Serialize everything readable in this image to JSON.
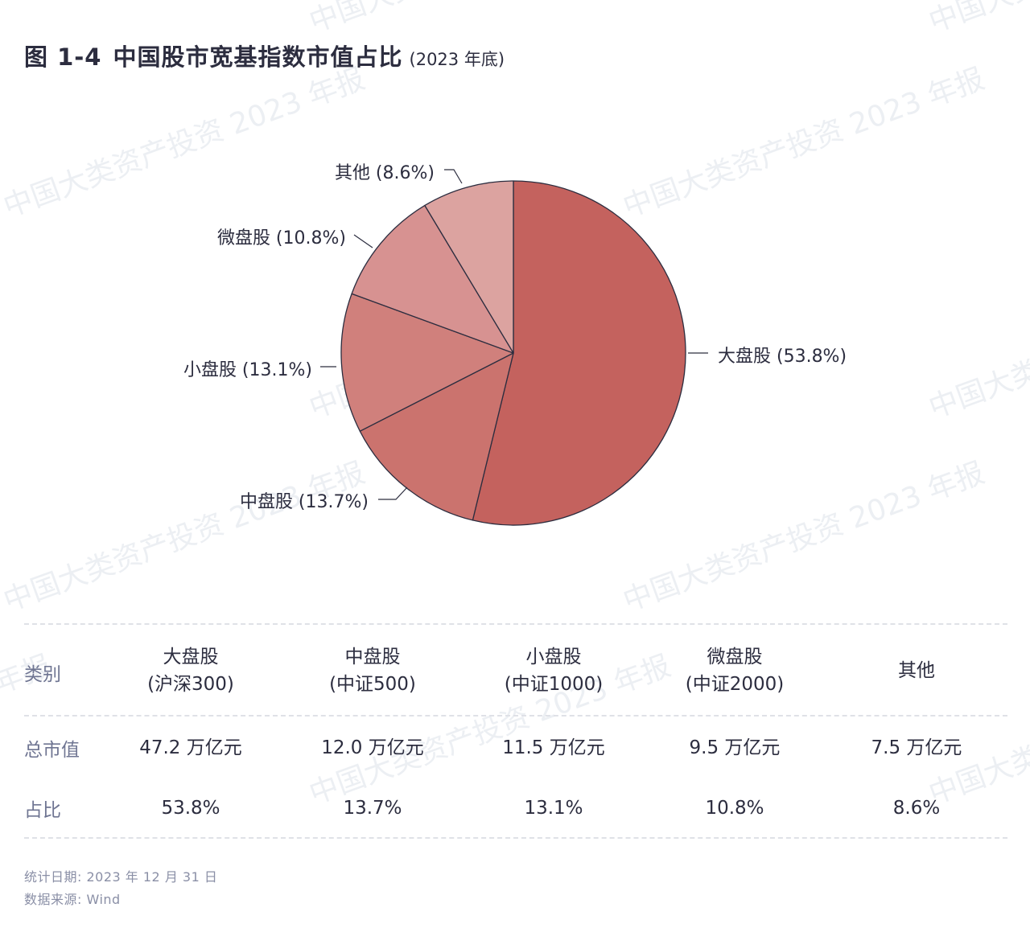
{
  "title": {
    "number": "图 1-4",
    "main": "中国股市宽基指数市值占比",
    "sub": "(2023 年底)"
  },
  "watermark": "中国大类资产投资 2023 年报",
  "chart_data": {
    "type": "pie",
    "title": "中国股市宽基指数市值占比",
    "slices": [
      {
        "label": "大盘股 (53.8%)",
        "name": "大盘股",
        "value": 53.8,
        "color": "#c4625e"
      },
      {
        "label": "中盘股 (13.7%)",
        "name": "中盘股",
        "value": 13.7,
        "color": "#cb736e"
      },
      {
        "label": "小盘股 (13.1%)",
        "name": "小盘股",
        "value": 13.1,
        "color": "#d0807c"
      },
      {
        "label": "微盘股 (10.8%)",
        "name": "微盘股",
        "value": 10.8,
        "color": "#d79291"
      },
      {
        "label": "其他 (8.6%)",
        "name": "其他",
        "value": 8.6,
        "color": "#dca3a0"
      }
    ],
    "start": "12 o'clock",
    "direction": "clockwise",
    "edge_color": "#2c2d3f"
  },
  "table": {
    "header": {
      "label": "类别",
      "cols": [
        {
          "l1": "大盘股",
          "l2": "(沪深300)"
        },
        {
          "l1": "中盘股",
          "l2": "(中证500)"
        },
        {
          "l1": "小盘股",
          "l2": "(中证1000)"
        },
        {
          "l1": "微盘股",
          "l2": "(中证2000)"
        },
        {
          "l1": "其他",
          "l2": ""
        }
      ]
    },
    "rows": [
      {
        "label": "总市值",
        "values": [
          "47.2 万亿元",
          "12.0 万亿元",
          "11.5 万亿元",
          "9.5 万亿元",
          "7.5 万亿元"
        ]
      },
      {
        "label": "占比",
        "values": [
          "53.8%",
          "13.7%",
          "13.1%",
          "10.8%",
          "8.6%"
        ]
      }
    ]
  },
  "footer": {
    "date": "统计日期: 2023 年 12 月 31 日",
    "source": "数据来源: Wind"
  }
}
